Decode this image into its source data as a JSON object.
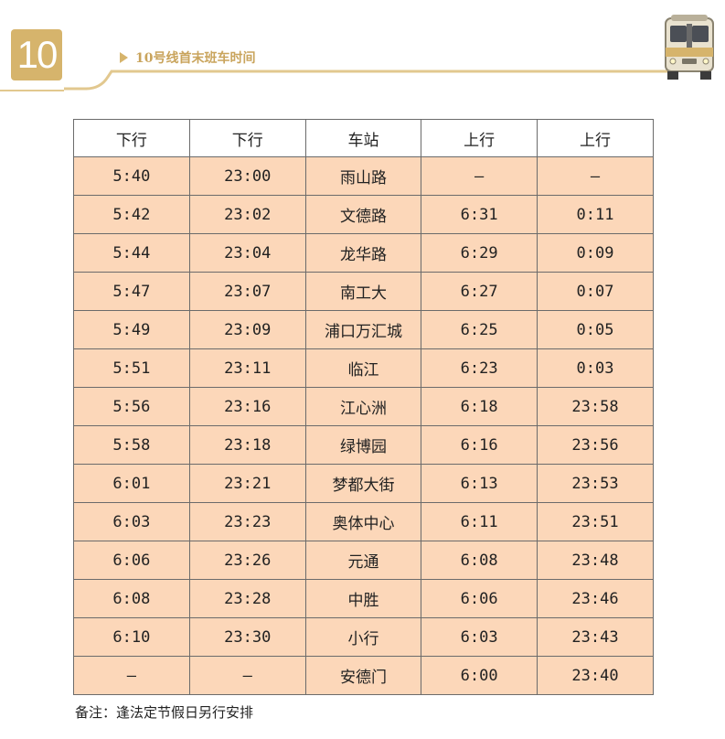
{
  "header": {
    "line_number": "10",
    "title": "10号线首末班车时间"
  },
  "table": {
    "columns": [
      "下行",
      "下行",
      "车站",
      "上行",
      "上行"
    ],
    "rows": [
      [
        "5:40",
        "23:00",
        "雨山路",
        "—",
        "—"
      ],
      [
        "5:42",
        "23:02",
        "文德路",
        "6:31",
        "0:11"
      ],
      [
        "5:44",
        "23:04",
        "龙华路",
        "6:29",
        "0:09"
      ],
      [
        "5:47",
        "23:07",
        "南工大",
        "6:27",
        "0:07"
      ],
      [
        "5:49",
        "23:09",
        "浦口万汇城",
        "6:25",
        "0:05"
      ],
      [
        "5:51",
        "23:11",
        "临江",
        "6:23",
        "0:03"
      ],
      [
        "5:56",
        "23:16",
        "江心洲",
        "6:18",
        "23:58"
      ],
      [
        "5:58",
        "23:18",
        "绿博园",
        "6:16",
        "23:56"
      ],
      [
        "6:01",
        "23:21",
        "梦都大街",
        "6:13",
        "23:53"
      ],
      [
        "6:03",
        "23:23",
        "奥体中心",
        "6:11",
        "23:51"
      ],
      [
        "6:06",
        "23:26",
        "元通",
        "6:08",
        "23:48"
      ],
      [
        "6:08",
        "23:28",
        "中胜",
        "6:06",
        "23:46"
      ],
      [
        "6:10",
        "23:30",
        "小行",
        "6:03",
        "23:43"
      ],
      [
        "—",
        "—",
        "安德门",
        "6:00",
        "23:40"
      ]
    ]
  },
  "footnote": "备注：逢法定节假日另行安排",
  "colors": {
    "accent": "#d6b46c",
    "title": "#c9a45c",
    "cell_fill": "#fcd7b9",
    "border": "#6b6b6b"
  },
  "icons": {
    "train": "metro-train-icon"
  }
}
